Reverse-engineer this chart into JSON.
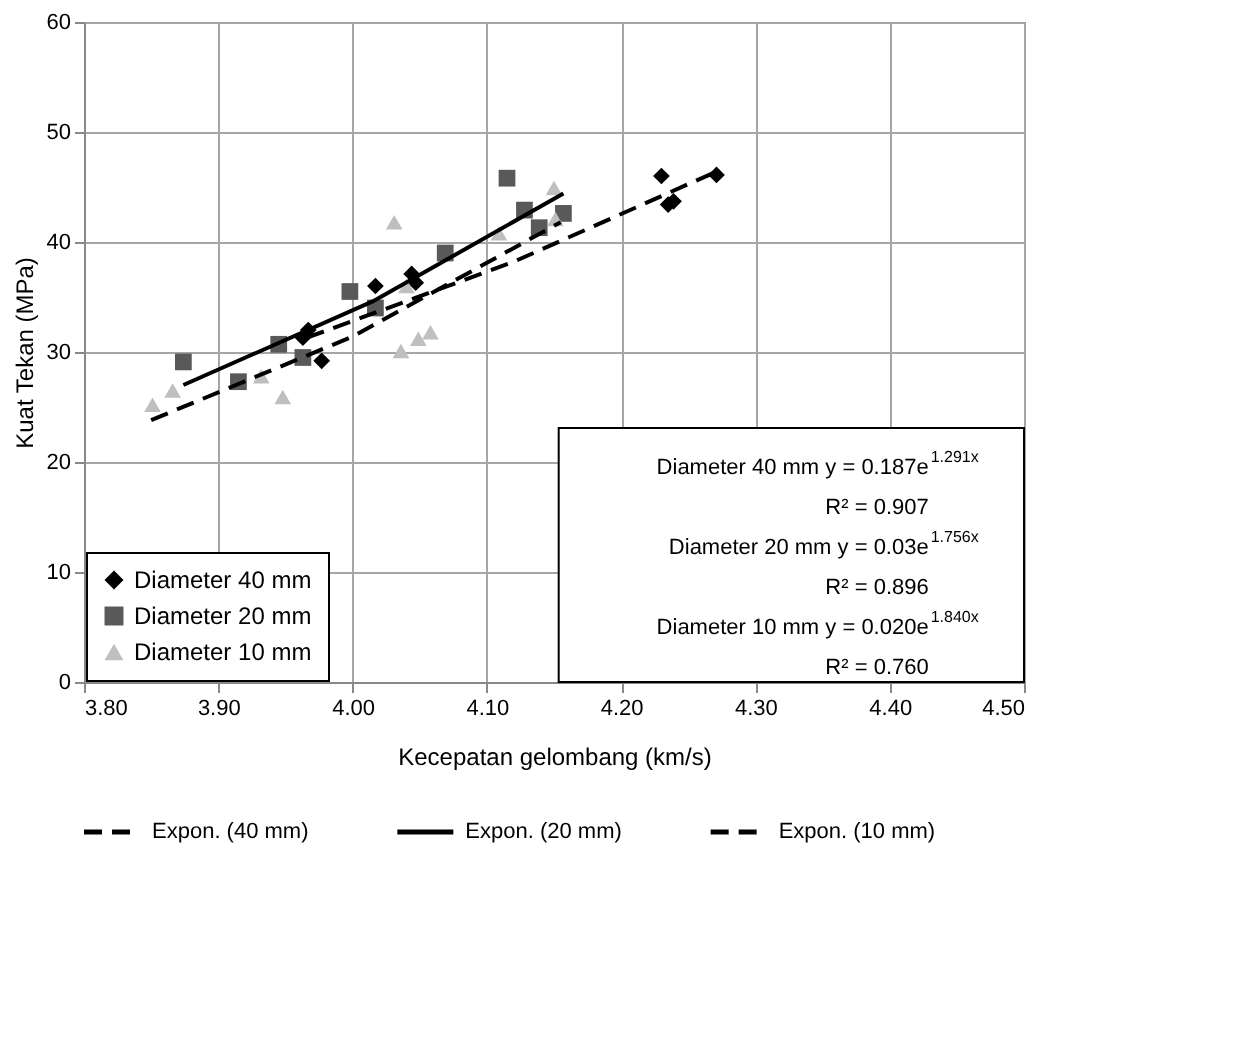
{
  "chart_data": {
    "type": "scatter",
    "xlabel": "Kecepatan gelombang (km/s)",
    "ylabel": "Kuat Tekan (MPa)",
    "xlim": [
      3.8,
      4.5
    ],
    "xticks": [
      {
        "value": 3.8,
        "label": "3.80"
      },
      {
        "value": 3.9,
        "label": "3.90"
      },
      {
        "value": 4.0,
        "label": "4.00"
      },
      {
        "value": 4.1,
        "label": "4.10"
      },
      {
        "value": 4.2,
        "label": "4.20"
      },
      {
        "value": 4.3,
        "label": "4.30"
      },
      {
        "value": 4.4,
        "label": "4.40"
      },
      {
        "value": 4.5,
        "label": "4.50"
      }
    ],
    "ylim": [
      0,
      60
    ],
    "yticks": [
      0,
      10,
      20,
      30,
      40,
      50,
      60
    ],
    "grid": true,
    "legend": "bottom left",
    "series": [
      {
        "name": "Diameter 40 mm",
        "color": "#000000",
        "marker": "diamond",
        "x": [
          3.963,
          3.967,
          3.977,
          4.017,
          4.044,
          4.047,
          4.23,
          4.235,
          4.239,
          4.271
        ],
        "values": [
          31.3,
          32.0,
          29.2,
          36.0,
          37.1,
          36.3,
          46.0,
          43.4,
          43.7,
          46.1
        ]
      },
      {
        "name": "Diameter 20 mm",
        "color": "#595959",
        "marker": "square",
        "x": [
          3.874,
          3.915,
          3.945,
          3.963,
          3.998,
          4.017,
          4.069,
          4.115,
          4.128,
          4.139,
          4.157
        ],
        "values": [
          29.1,
          27.3,
          30.7,
          29.5,
          35.5,
          34.0,
          39.0,
          45.8,
          42.9,
          41.3,
          42.6
        ]
      },
      {
        "name": "Diameter 10 mm",
        "color": "#bfbfbf",
        "marker": "triangle",
        "x": [
          3.851,
          3.866,
          3.932,
          3.948,
          4.031,
          4.036,
          4.04,
          4.049,
          4.058,
          4.109,
          4.15,
          4.151
        ],
        "values": [
          25.2,
          26.5,
          27.8,
          25.9,
          41.8,
          30.1,
          36.0,
          31.2,
          31.8,
          40.8,
          44.9,
          42.1
        ]
      },
      {
        "name": "Expon. (40 mm)",
        "type": "line",
        "color": "#000000",
        "line_style": "dashed",
        "x": [
          3.966,
          4.12,
          4.271
        ],
        "values": [
          31.3,
          38.2,
          46.4
        ]
      },
      {
        "name": "Expon. (20 mm)",
        "type": "line",
        "color": "#000000",
        "line_style": "solid",
        "x": [
          3.874,
          4.015,
          4.157
        ],
        "values": [
          27.0,
          34.6,
          44.4
        ]
      },
      {
        "name": "Expon. (10 mm)",
        "type": "line",
        "color": "#000000",
        "line_style": "dashed",
        "x": [
          3.85,
          4.0,
          4.155
        ],
        "values": [
          23.8,
          31.4,
          41.8
        ]
      }
    ],
    "annotations": [
      "Diameter 40 mm  y = 0.187e$^{1.291x}$",
      "R² = 0.907",
      "Diameter 20 mm  y = 0.03e$^{1.756x}$",
      "R² = 0.896",
      "Diameter 10 mm  y = 0.020e$^{1.840x}$",
      "R² = 0.760"
    ]
  }
}
